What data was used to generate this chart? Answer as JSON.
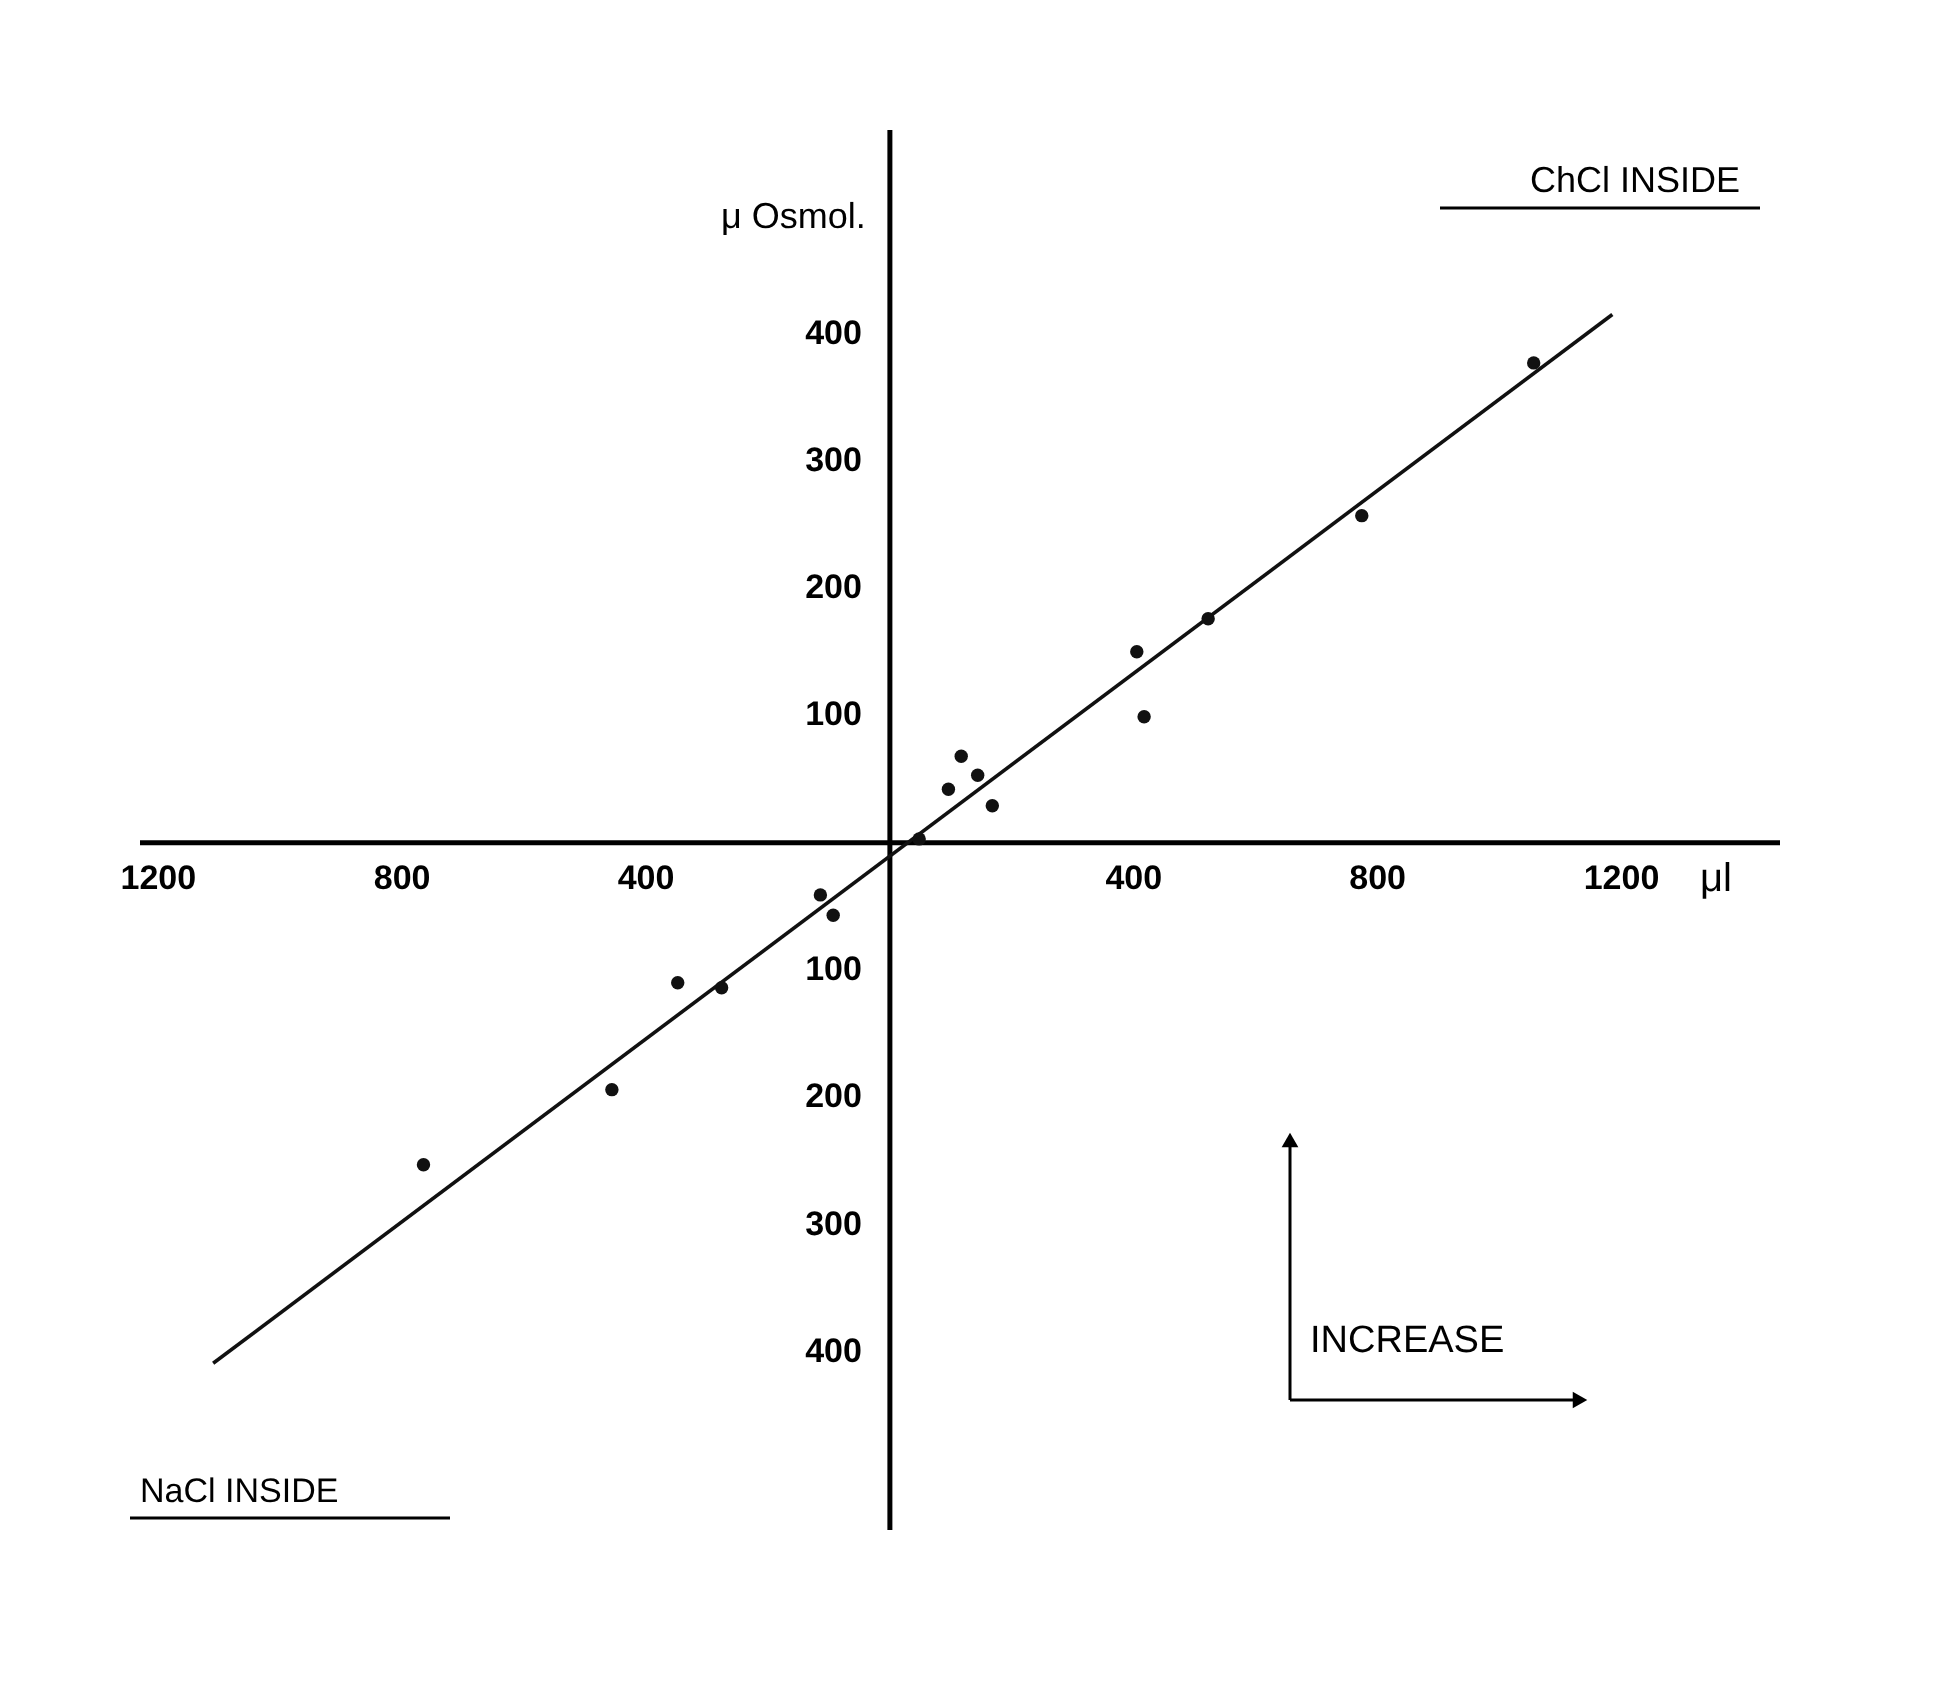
{
  "chart_data": {
    "type": "scatter",
    "xlabel": "μl",
    "ylabel": "μ Osmol.",
    "annotations": [
      "ChCl INSIDE",
      "NaCl INSIDE",
      "INCREASE"
    ],
    "xlim": [
      -1230,
      1460
    ],
    "ylim": [
      -540,
      560
    ],
    "xticks": [
      {
        "value": -1200,
        "label": "1200"
      },
      {
        "value": -800,
        "label": "800"
      },
      {
        "value": -400,
        "label": "400"
      },
      400,
      800,
      1200
    ],
    "yticks": [
      {
        "value": -400,
        "label": "400"
      },
      {
        "value": -300,
        "label": "300"
      },
      {
        "value": -200,
        "label": "200"
      },
      {
        "value": -100,
        "label": "100"
      },
      100,
      200,
      300,
      400
    ],
    "grid": false,
    "marker": "circle",
    "series": [
      {
        "color": "#111111",
        "x": [
          1056,
          774,
          522,
          405,
          417,
          117,
          96,
          144,
          168,
          48,
          -114,
          -93,
          -348,
          -276,
          -456,
          -765
        ],
        "values": [
          377,
          257,
          176,
          150,
          99,
          68,
          42,
          53,
          29,
          3,
          -41,
          -57,
          -110,
          -114,
          -194,
          -253
        ]
      },
      {
        "type": "line",
        "color": "#111111",
        "line_style": "solid",
        "marker": "none",
        "x": [
          -1110,
          1185
        ],
        "values": [
          -409,
          415
        ]
      }
    ]
  }
}
